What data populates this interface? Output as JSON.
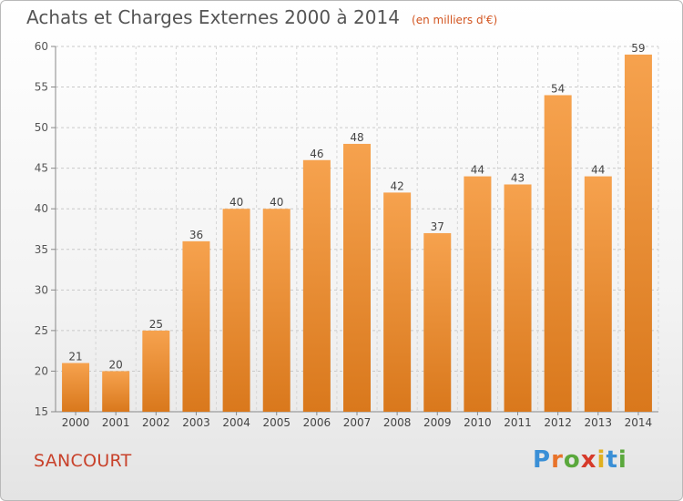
{
  "header": {
    "title": "Achats et Charges Externes 2000 à 2014",
    "subtitle": "(en milliers d'€)"
  },
  "footer": {
    "commune": "SANCOURT",
    "logo": "Proxiti"
  },
  "colors": {
    "bar_top": "#f6a24e",
    "bar_bottom": "#d9781c",
    "title_text": "#555555",
    "subtitle_text": "#d2541f",
    "commune_text": "#c8412a"
  },
  "chart_data": {
    "type": "bar",
    "title": "Achats et Charges Externes 2000 à 2014",
    "subtitle": "(en milliers d'€)",
    "categories": [
      "2000",
      "2001",
      "2002",
      "2003",
      "2004",
      "2005",
      "2006",
      "2007",
      "2008",
      "2009",
      "2010",
      "2011",
      "2012",
      "2013",
      "2014"
    ],
    "values": [
      21,
      20,
      25,
      36,
      40,
      40,
      46,
      48,
      42,
      37,
      44,
      43,
      54,
      44,
      59
    ],
    "ylim": [
      15,
      60
    ],
    "yticks": [
      15,
      20,
      25,
      30,
      35,
      40,
      45,
      50,
      55,
      60
    ],
    "grid": true,
    "data_labels": true
  }
}
